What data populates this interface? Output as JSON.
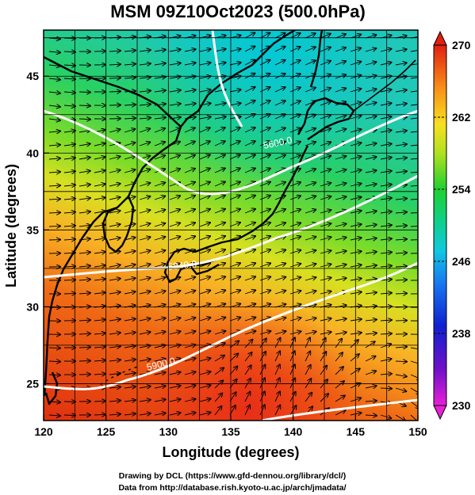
{
  "title": "MSM 09Z10Oct2023 (500.0hPa)",
  "xlabel": "Longitude (degrees)",
  "ylabel": "Latitude  (degrees)",
  "xticks": [
    "120",
    "125",
    "130",
    "135",
    "140",
    "145",
    "150"
  ],
  "yticks": [
    "25",
    "30",
    "35",
    "40",
    "45"
  ],
  "colorbar": {
    "ticks": [
      "230",
      "238",
      "246",
      "254",
      "262",
      "270"
    ],
    "min": 230,
    "max": 270
  },
  "contours": {
    "labels": [
      "5600.0",
      "5840.0",
      "5900.0"
    ]
  },
  "credits": {
    "line1": "Drawing by DCL (https://www.gfd-dennou.org/library/dcl/)",
    "line2": "Data from http://database.rish.kyoto-u.ac.jp/arch/jmadata/"
  },
  "colors": {
    "cold": "#00c8d0",
    "warm": "#e03010",
    "frame": "#000000",
    "contour": "#ffffff"
  }
}
